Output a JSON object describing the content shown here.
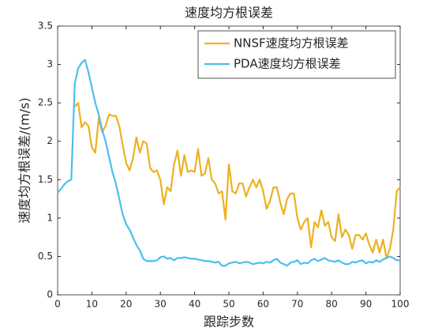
{
  "chart_data": {
    "type": "line",
    "title": "速度均方根误差",
    "xlabel": "跟踪步数",
    "ylabel": "速度均方根误差/(m/s)",
    "x": [
      0,
      1,
      2,
      3,
      4,
      5,
      6,
      7,
      8,
      9,
      10,
      11,
      12,
      13,
      14,
      15,
      16,
      17,
      18,
      19,
      20,
      21,
      22,
      23,
      24,
      25,
      26,
      27,
      28,
      29,
      30,
      31,
      32,
      33,
      34,
      35,
      36,
      37,
      38,
      39,
      40,
      41,
      42,
      43,
      44,
      45,
      46,
      47,
      48,
      49,
      50,
      51,
      52,
      53,
      54,
      55,
      56,
      57,
      58,
      59,
      60,
      61,
      62,
      63,
      64,
      65,
      66,
      67,
      68,
      69,
      70,
      71,
      72,
      73,
      74,
      75,
      76,
      77,
      78,
      79,
      80,
      81,
      82,
      83,
      84,
      85,
      86,
      87,
      88,
      89,
      90,
      91,
      92,
      93,
      94,
      95,
      96,
      97,
      98,
      99,
      100
    ],
    "series": [
      {
        "name": "NNSF速度均方根误差",
        "color": "#EDB120",
        "values": [
          null,
          null,
          null,
          null,
          null,
          2.45,
          2.5,
          2.18,
          2.25,
          2.2,
          1.92,
          1.85,
          2.3,
          2.12,
          2.2,
          2.35,
          2.33,
          2.33,
          2.2,
          1.95,
          1.72,
          1.62,
          1.78,
          2.05,
          1.85,
          2.0,
          1.97,
          1.65,
          1.6,
          1.62,
          1.5,
          1.18,
          1.4,
          1.35,
          1.7,
          1.88,
          1.55,
          1.82,
          1.6,
          1.62,
          1.6,
          1.9,
          1.55,
          1.58,
          1.78,
          1.5,
          1.45,
          1.32,
          1.35,
          0.98,
          1.7,
          1.35,
          1.32,
          1.45,
          1.45,
          1.28,
          1.4,
          1.5,
          1.4,
          1.5,
          1.35,
          1.12,
          1.22,
          1.4,
          1.4,
          1.2,
          1.05,
          1.25,
          1.32,
          1.32,
          1.0,
          0.85,
          0.95,
          1.0,
          0.62,
          0.95,
          0.88,
          1.1,
          0.9,
          0.95,
          0.75,
          0.7,
          1.05,
          0.75,
          0.85,
          0.78,
          0.6,
          0.78,
          0.78,
          0.72,
          0.8,
          0.65,
          0.55,
          0.72,
          0.55,
          0.72,
          0.48,
          0.6,
          0.85,
          1.35,
          1.4
        ]
      },
      {
        "name": "PDA速度均方根误差",
        "color": "#4DBEEE",
        "values": [
          1.33,
          1.38,
          1.44,
          1.48,
          1.5,
          2.75,
          2.95,
          3.02,
          3.06,
          2.9,
          2.7,
          2.5,
          2.35,
          2.15,
          2.0,
          1.8,
          1.6,
          1.45,
          1.25,
          1.05,
          0.92,
          0.85,
          0.75,
          0.65,
          0.58,
          0.47,
          0.44,
          0.44,
          0.44,
          0.45,
          0.49,
          0.5,
          0.47,
          0.48,
          0.45,
          0.48,
          0.48,
          0.49,
          0.48,
          0.47,
          0.47,
          0.46,
          0.45,
          0.44,
          0.44,
          0.43,
          0.42,
          0.43,
          0.38,
          0.38,
          0.41,
          0.42,
          0.43,
          0.41,
          0.42,
          0.43,
          0.42,
          0.4,
          0.41,
          0.42,
          0.41,
          0.43,
          0.42,
          0.45,
          0.47,
          0.42,
          0.4,
          0.38,
          0.42,
          0.43,
          0.45,
          0.4,
          0.42,
          0.41,
          0.45,
          0.47,
          0.44,
          0.46,
          0.48,
          0.45,
          0.44,
          0.43,
          0.45,
          0.42,
          0.4,
          0.4,
          0.43,
          0.42,
          0.44,
          0.45,
          0.41,
          0.43,
          0.42,
          0.45,
          0.43,
          0.46,
          0.48,
          0.5,
          0.48,
          0.45,
          0.45
        ]
      }
    ],
    "xlim": [
      0,
      100
    ],
    "xticks": [
      0,
      10,
      20,
      30,
      40,
      50,
      60,
      70,
      80,
      90,
      100
    ],
    "ylim": [
      0,
      3.5
    ],
    "yticks": [
      0,
      0.5,
      1,
      1.5,
      2,
      2.5,
      3,
      3.5
    ],
    "legend": "northeast"
  }
}
